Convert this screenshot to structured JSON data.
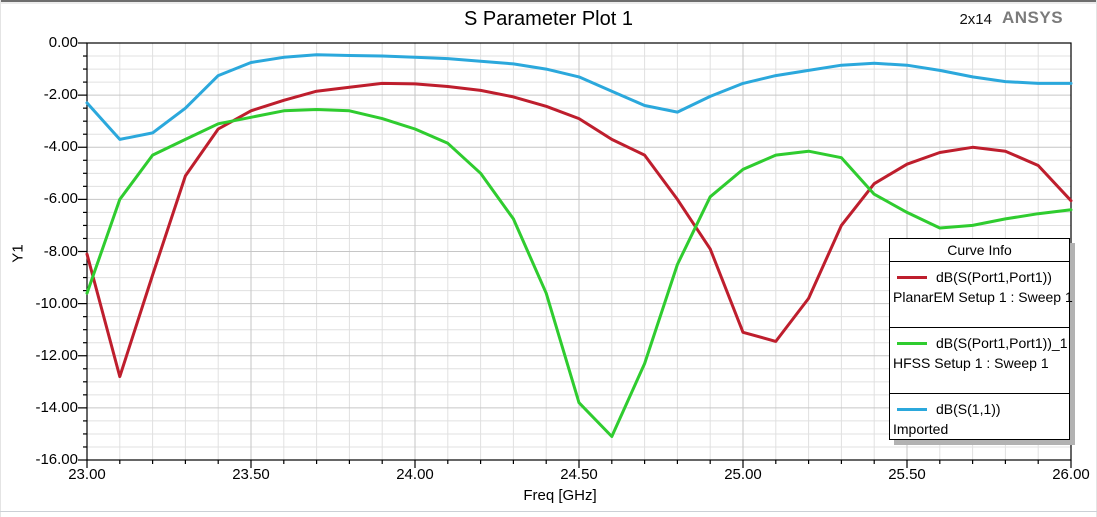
{
  "header": {
    "title": "S Parameter Plot 1",
    "annotation": "2x14",
    "brand": "ANSYS"
  },
  "axes": {
    "y_label": "Y1",
    "x_label": "Freq [GHz]"
  },
  "legend": {
    "header": "Curve Info",
    "entries": [
      {
        "label": "dB(S(Port1,Port1))",
        "sublabel": "PlanarEM Setup 1 : Sweep 1",
        "color": "#be1e2d"
      },
      {
        "label": "dB(S(Port1,Port1))_1",
        "sublabel": "HFSS Setup 1 : Sweep 1",
        "color": "#2fcc2f"
      },
      {
        "label": "dB(S(1,1))",
        "sublabel": "Imported",
        "color": "#2ba8dc"
      }
    ]
  },
  "colors": {
    "grid_minor": "#e0e0e0",
    "grid_major": "#c6c6c6",
    "axis": "#000000",
    "plot_background": "#ffffff"
  },
  "chart_data": {
    "type": "line",
    "title": "S Parameter Plot 1",
    "xlabel": "Freq [GHz]",
    "ylabel": "Y1",
    "xlim": [
      23.0,
      26.0
    ],
    "ylim": [
      -16.0,
      0.0
    ],
    "grid": "on",
    "legend_position": "overlay-right-middle",
    "x_tick_labels": [
      "23.00",
      "23.50",
      "24.00",
      "24.50",
      "25.00",
      "25.50",
      "26.00"
    ],
    "y_tick_labels": [
      "0.00",
      "-2.00",
      "-4.00",
      "-6.00",
      "-8.00",
      "-10.00",
      "-12.00",
      "-14.00",
      "-16.00"
    ],
    "x_minor_step": 0.1,
    "y_minor_step": 0.5,
    "x": [
      23.0,
      23.1,
      23.2,
      23.3,
      23.4,
      23.5,
      23.6,
      23.7,
      23.8,
      23.9,
      24.0,
      24.1,
      24.2,
      24.3,
      24.4,
      24.5,
      24.6,
      24.7,
      24.8,
      24.9,
      25.0,
      25.1,
      25.2,
      25.3,
      25.4,
      25.5,
      25.6,
      25.7,
      25.8,
      25.9,
      26.0
    ],
    "series": [
      {
        "name": "dB(S(Port1,Port1))",
        "setup": "PlanarEM Setup 1 : Sweep 1",
        "color": "#be1e2d",
        "values": [
          -8.1,
          -12.8,
          -8.9,
          -5.1,
          -3.3,
          -2.6,
          -2.2,
          -1.85,
          -1.7,
          -1.55,
          -1.57,
          -1.67,
          -1.82,
          -2.07,
          -2.43,
          -2.9,
          -3.7,
          -4.3,
          -6.0,
          -7.9,
          -11.1,
          -11.45,
          -9.8,
          -7.0,
          -5.4,
          -4.65,
          -4.2,
          -4.0,
          -4.15,
          -4.7,
          -6.05
        ]
      },
      {
        "name": "dB(S(Port1,Port1))_1",
        "setup": "HFSS Setup 1 : Sweep 1",
        "color": "#2fcc2f",
        "values": [
          -9.6,
          -6.0,
          -4.3,
          -3.7,
          -3.1,
          -2.85,
          -2.6,
          -2.55,
          -2.6,
          -2.9,
          -3.3,
          -3.85,
          -5.0,
          -6.75,
          -9.6,
          -13.8,
          -15.1,
          -12.3,
          -8.5,
          -5.9,
          -4.85,
          -4.3,
          -4.15,
          -4.4,
          -5.8,
          -6.5,
          -7.1,
          -7.0,
          -6.75,
          -6.55,
          -6.4
        ]
      },
      {
        "name": "dB(S(1,1))",
        "setup": "Imported",
        "color": "#2ba8dc",
        "values": [
          -2.3,
          -3.7,
          -3.45,
          -2.5,
          -1.25,
          -0.75,
          -0.55,
          -0.45,
          -0.48,
          -0.5,
          -0.55,
          -0.6,
          -0.7,
          -0.8,
          -1.0,
          -1.3,
          -1.85,
          -2.4,
          -2.65,
          -2.05,
          -1.55,
          -1.25,
          -1.05,
          -0.85,
          -0.78,
          -0.85,
          -1.05,
          -1.3,
          -1.48,
          -1.55,
          -1.55
        ]
      }
    ]
  }
}
